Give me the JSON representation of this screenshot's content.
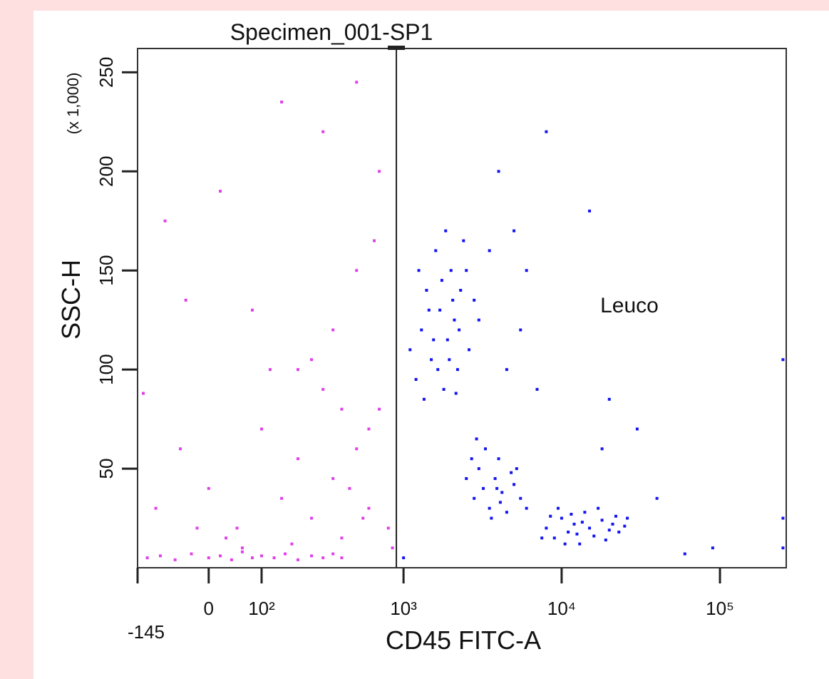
{
  "chart_data": {
    "type": "scatter",
    "title": "Specimen_001-SP1",
    "x_label": "CD45 FITC-A",
    "y_label": "SSC-H",
    "y_label_note": "(x 1,000)",
    "xscale": "biexponential",
    "xlim": [
      -145,
      262143
    ],
    "ylim": [
      0,
      262
    ],
    "xticks": [
      -145,
      0,
      {
        "value": 100,
        "label": "10²"
      },
      {
        "value": 1000,
        "label": "10³"
      },
      {
        "value": 10000,
        "label": "10⁴"
      },
      {
        "value": 100000,
        "label": "10⁵"
      }
    ],
    "yticks": [
      50,
      100,
      150,
      200,
      250
    ],
    "gate": {
      "name": "Leuco",
      "x_min": 900
    },
    "series": [
      {
        "color": "#e040e8",
        "x": [
          -120,
          -90,
          -60,
          -30,
          0,
          20,
          40,
          60,
          80,
          100,
          130,
          160,
          200,
          250,
          300,
          350,
          400,
          -100,
          -50,
          0,
          50,
          100,
          150,
          200,
          250,
          300,
          350,
          400,
          500,
          600,
          700,
          800,
          -130,
          -80,
          20,
          150,
          300,
          500,
          700,
          650,
          500,
          400,
          250,
          120,
          80,
          -40,
          30,
          -20,
          60,
          180,
          450,
          550,
          850,
          600,
          350,
          200
        ],
        "values": [
          5,
          6,
          4,
          7,
          5,
          6,
          4,
          8,
          5,
          6,
          5,
          7,
          4,
          6,
          5,
          7,
          5,
          30,
          60,
          40,
          20,
          70,
          35,
          55,
          25,
          90,
          45,
          15,
          60,
          30,
          80,
          20,
          88,
          175,
          190,
          235,
          220,
          245,
          200,
          165,
          150,
          80,
          105,
          100,
          130,
          135,
          15,
          20,
          10,
          12,
          40,
          25,
          10,
          70,
          120,
          100
        ]
      },
      {
        "color": "#1414f0",
        "x": [
          1200,
          1300,
          1400,
          1500,
          1600,
          1700,
          1800,
          1900,
          2000,
          2100,
          2200,
          2300,
          2400,
          2600,
          2800,
          1250,
          1350,
          1450,
          1550,
          1650,
          1750,
          1850,
          1950,
          2050,
          2150,
          2250,
          2500,
          3000,
          1100,
          3500,
          5000,
          6000,
          4000,
          8000,
          15000,
          5500,
          7000,
          4500,
          2500,
          2800,
          3000,
          3200,
          3500,
          3800,
          4000,
          4200,
          4500,
          5000,
          5500,
          6000,
          3300,
          2700,
          3600,
          4800,
          2900,
          4100,
          5200,
          3900,
          8000,
          9000,
          10000,
          11000,
          12000,
          13000,
          14000,
          15000,
          16000,
          18000,
          20000,
          22000,
          25000,
          9500,
          10500,
          11500,
          12500,
          13500,
          17000,
          19000,
          21000,
          23000,
          8500,
          7500,
          26000,
          40000,
          60000,
          90000,
          250000,
          250000,
          250000,
          1000,
          18000,
          20000,
          30000
        ],
        "values": [
          95,
          120,
          140,
          105,
          160,
          130,
          90,
          115,
          150,
          125,
          100,
          140,
          165,
          110,
          135,
          150,
          85,
          130,
          115,
          100,
          145,
          170,
          105,
          135,
          88,
          120,
          150,
          125,
          110,
          160,
          170,
          150,
          200,
          220,
          180,
          120,
          90,
          100,
          45,
          35,
          50,
          40,
          30,
          45,
          55,
          38,
          28,
          42,
          35,
          30,
          60,
          55,
          25,
          48,
          65,
          33,
          50,
          40,
          20,
          15,
          25,
          18,
          22,
          12,
          28,
          20,
          16,
          24,
          19,
          26,
          21,
          30,
          12,
          27,
          17,
          23,
          30,
          14,
          22,
          18,
          26,
          15,
          25,
          35,
          7,
          10,
          105,
          25,
          10,
          5,
          60,
          85,
          70
        ]
      }
    ]
  }
}
